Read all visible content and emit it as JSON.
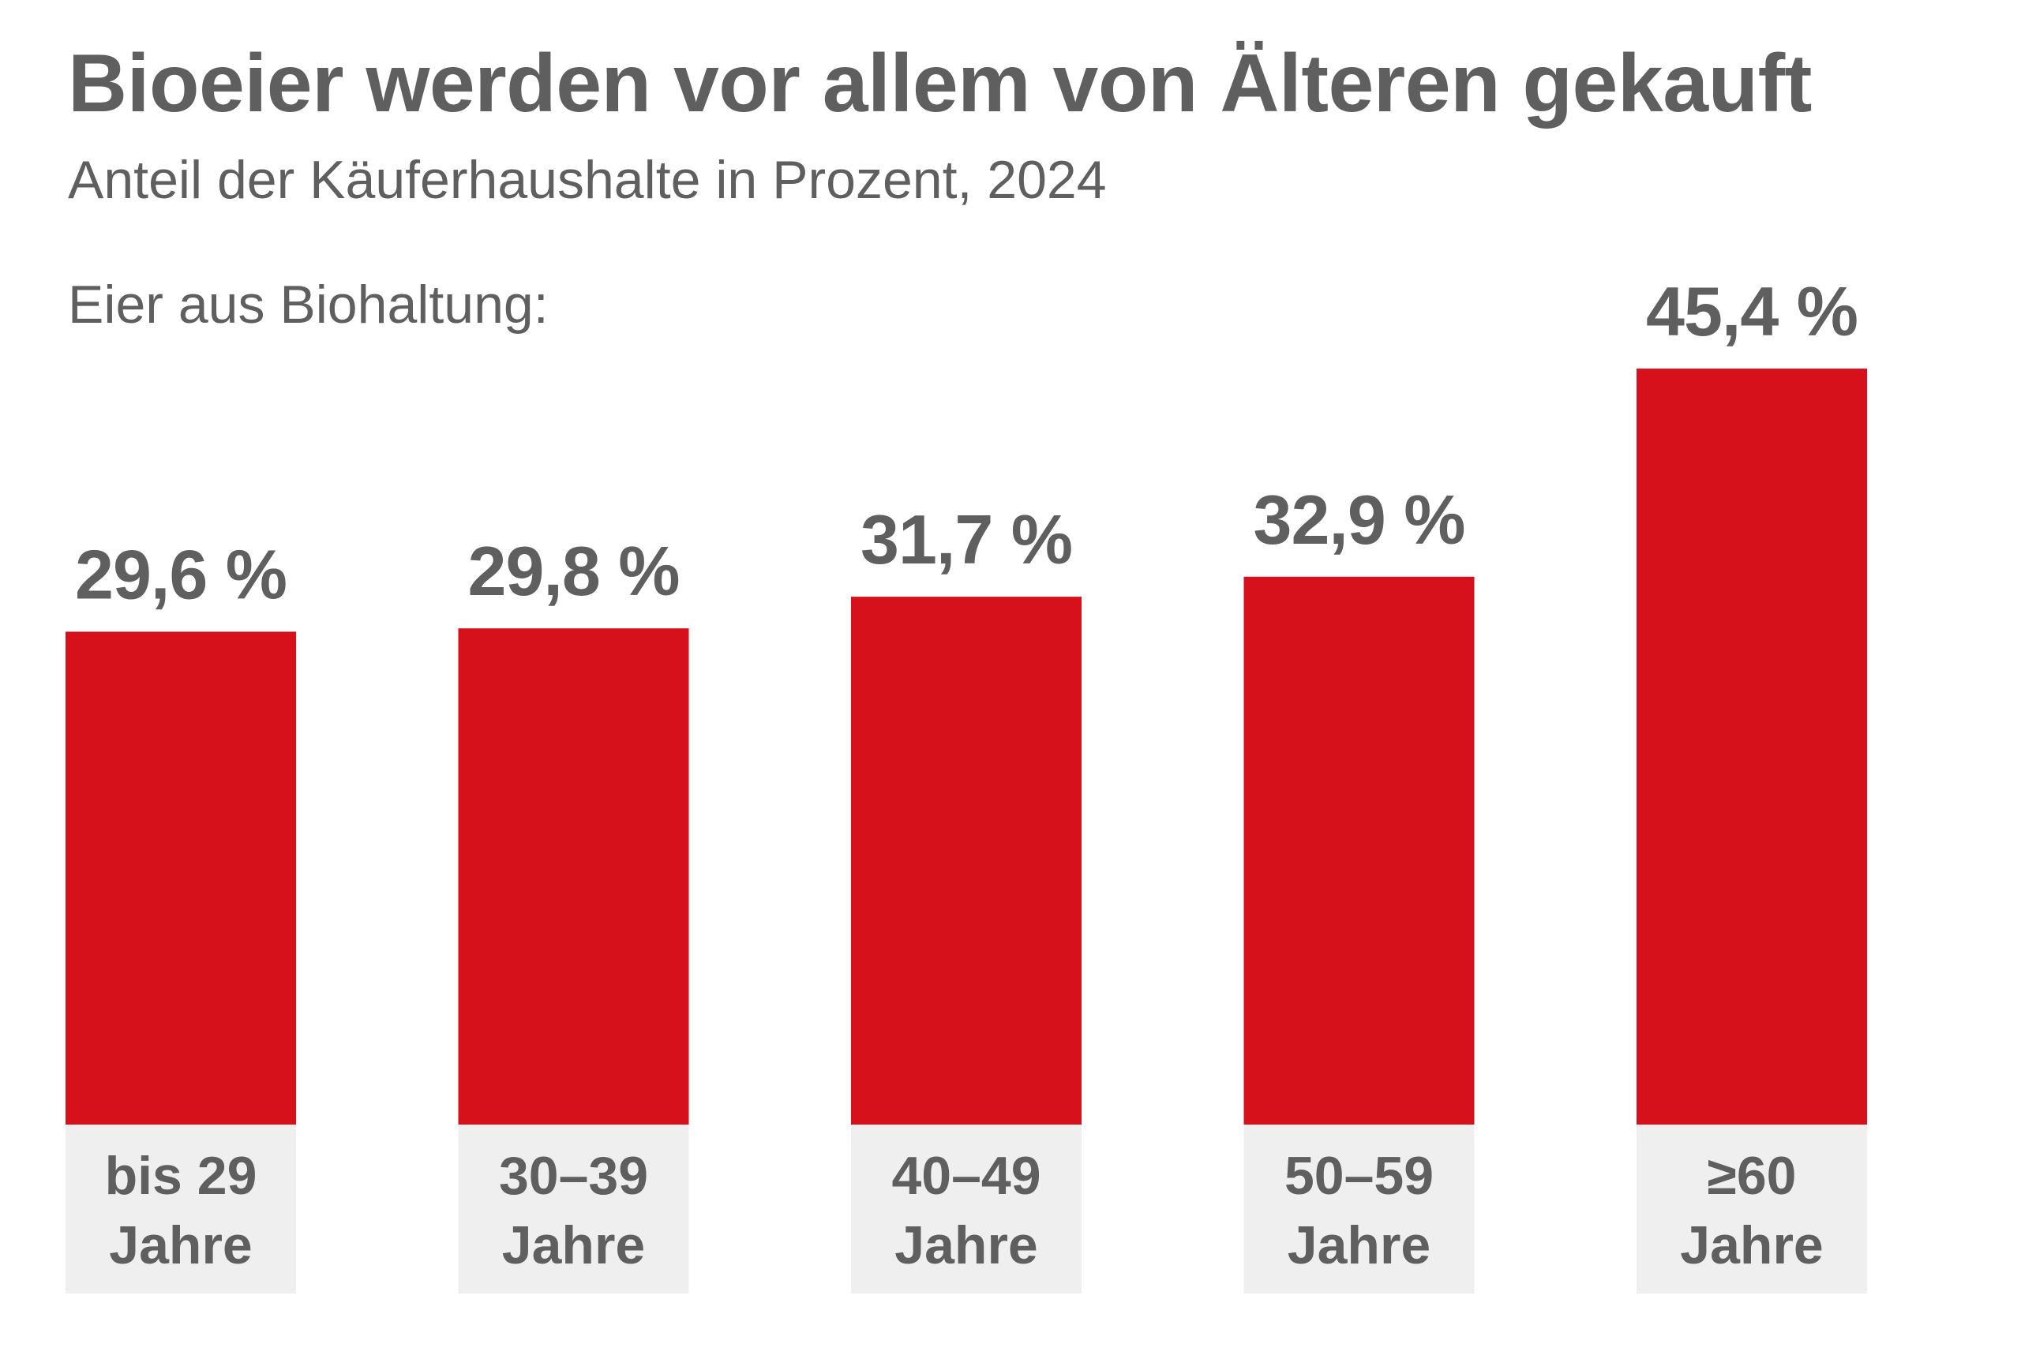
{
  "header": {
    "title": "Bioeier werden vor allem von Älteren gekauft",
    "subtitle": "Anteil der Käuferhaushalte in Prozent, 2024",
    "series_label": "Eier aus Biohaltung:"
  },
  "colors": {
    "bar": "#d7111c",
    "category_box": "#efefef",
    "text": "#5f5f5f"
  },
  "chart_data": {
    "type": "bar",
    "title": "Bioeier werden vor allem von Älteren gekauft",
    "subtitle": "Anteil der Käuferhaushalte in Prozent, 2024",
    "series_label": "Eier aus Biohaltung:",
    "xlabel": "",
    "ylabel": "",
    "grid": false,
    "legend": "none",
    "unit": "%",
    "ylim": [
      0,
      45.4
    ],
    "categories": [
      [
        "bis 29",
        "Jahre"
      ],
      [
        "30–39",
        "Jahre"
      ],
      [
        "40–49",
        "Jahre"
      ],
      [
        "50–59",
        "Jahre"
      ],
      [
        "≥60",
        "Jahre"
      ]
    ],
    "series": [
      {
        "name": "Eier aus Biohaltung",
        "values": [
          29.6,
          29.8,
          31.7,
          32.9,
          45.4
        ],
        "labels": [
          "29,6 %",
          "29,8 %",
          "31,7 %",
          "32,9 %",
          "45,4 %"
        ]
      }
    ]
  }
}
